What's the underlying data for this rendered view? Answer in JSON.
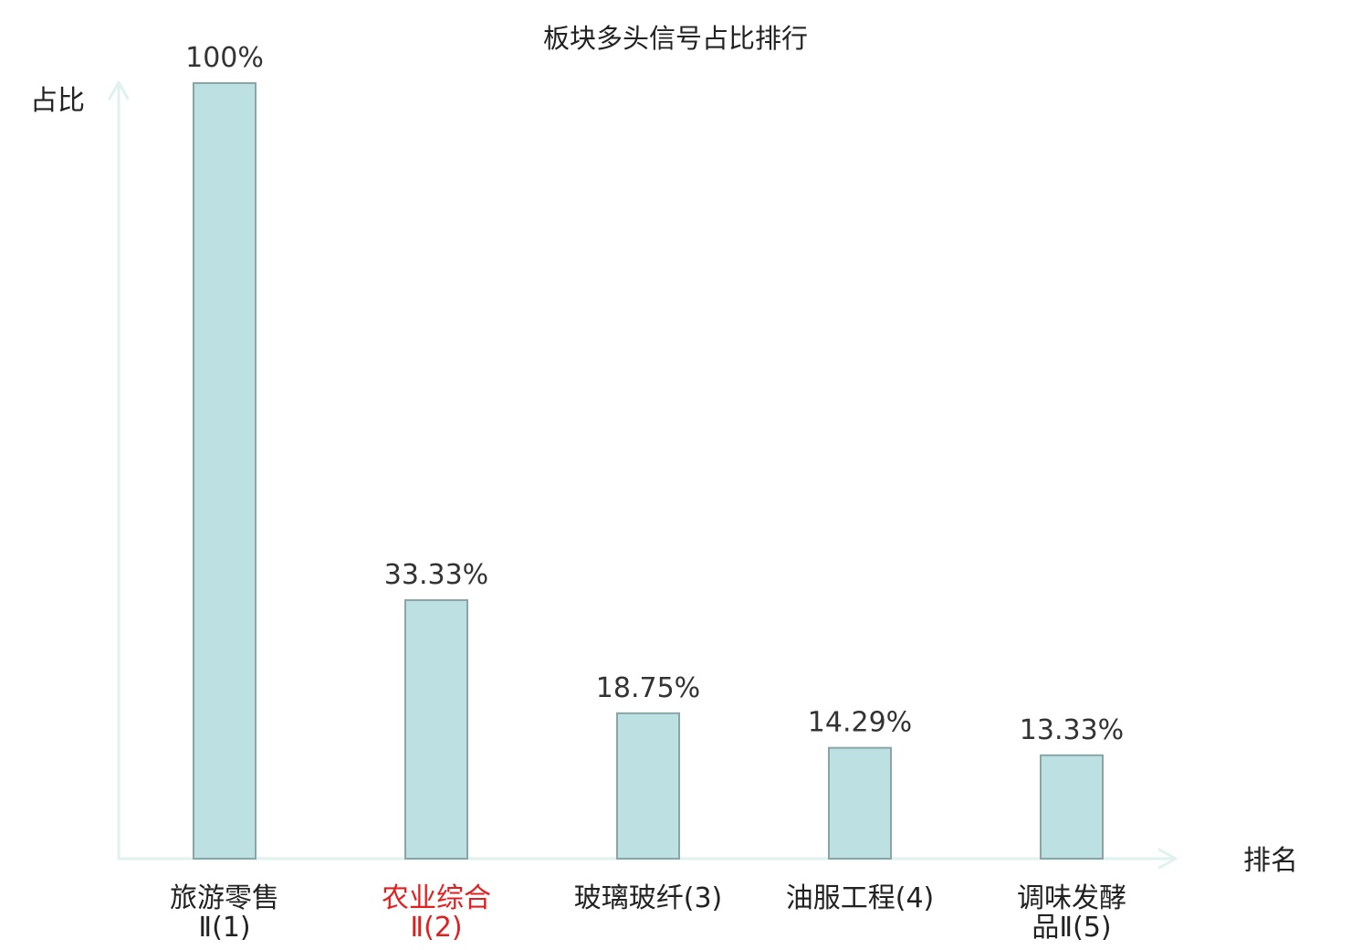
{
  "chart_data": {
    "type": "bar",
    "title": "板块多头信号占比排行",
    "xlabel": "排名",
    "ylabel": "占比",
    "categories": [
      {
        "lines": [
          "旅游零售",
          "Ⅱ(1)"
        ],
        "highlight": false
      },
      {
        "lines": [
          "农业综合",
          "Ⅱ(2)"
        ],
        "highlight": true
      },
      {
        "lines": [
          "玻璃玻纤(3)"
        ],
        "highlight": false
      },
      {
        "lines": [
          "油服工程(4)"
        ],
        "highlight": false
      },
      {
        "lines": [
          "调味发酵",
          "品Ⅱ(5)"
        ],
        "highlight": false
      }
    ],
    "values": [
      100,
      33.33,
      18.75,
      14.29,
      13.33
    ],
    "value_labels": [
      "100%",
      "33.33%",
      "18.75%",
      "14.29%",
      "13.33%"
    ],
    "ylim": [
      0,
      100
    ],
    "grid": false,
    "colors": {
      "bar_fill": "#bde0e2",
      "bar_stroke": "#8aa5a8",
      "axis": "#dff2ee",
      "highlight": "#e02020",
      "text": "#222222"
    }
  }
}
